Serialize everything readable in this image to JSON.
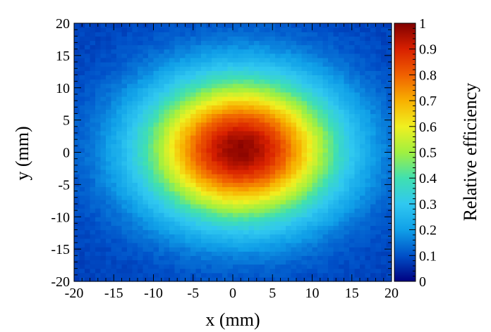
{
  "chart_data": {
    "type": "heatmap",
    "title": "",
    "xlabel": "x (mm)",
    "ylabel": "y (mm)",
    "zlabel": "Relative efficiency",
    "xlim": [
      -20,
      20
    ],
    "ylim": [
      -20,
      20
    ],
    "zlim": [
      0,
      1
    ],
    "x_ticks": [
      -20,
      -15,
      -10,
      -5,
      0,
      5,
      10,
      15,
      20
    ],
    "y_ticks": [
      -20,
      -15,
      -10,
      -5,
      0,
      5,
      10,
      15,
      20
    ],
    "z_ticks": [
      0,
      0.1,
      0.2,
      0.3,
      0.4,
      0.5,
      0.6,
      0.7,
      0.8,
      0.9,
      1
    ],
    "x_tick_labels": [
      "-20",
      "-15",
      "-10",
      "-5",
      "0",
      "5",
      "10",
      "15",
      "20"
    ],
    "y_tick_labels": [
      "-20",
      "-15",
      "-10",
      "-5",
      "0",
      "5",
      "10",
      "15",
      "20"
    ],
    "z_tick_labels": [
      "0",
      "0.1",
      "0.2",
      "0.3",
      "0.4",
      "0.5",
      "0.6",
      "0.7",
      "0.8",
      "0.9",
      "1"
    ],
    "colormap": "rainbow (dark blue to dark red)",
    "colormap_stops": [
      "#000080",
      "#0050c8",
      "#10a0e8",
      "#30c8f0",
      "#40e0b0",
      "#a0f040",
      "#f0f020",
      "#f8b000",
      "#f06000",
      "#d82000",
      "#800000"
    ],
    "peak": {
      "x": 1,
      "y": 0.5,
      "value": 0.98
    },
    "grid": false,
    "legend": "colorbar-right"
  }
}
